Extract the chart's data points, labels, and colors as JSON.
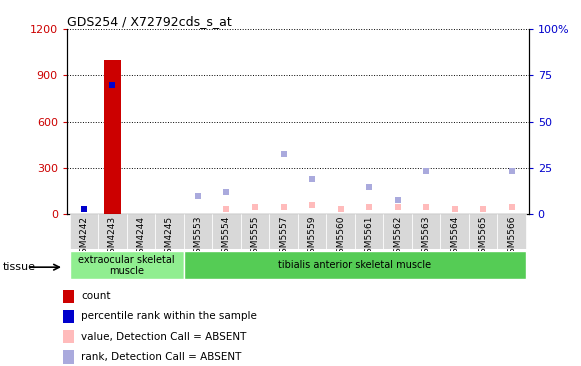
{
  "title": "GDS254 / X72792cds_s_at",
  "samples": [
    "GSM4242",
    "GSM4243",
    "GSM4244",
    "GSM4245",
    "GSM5553",
    "GSM5554",
    "GSM5555",
    "GSM5557",
    "GSM5559",
    "GSM5560",
    "GSM5561",
    "GSM5562",
    "GSM5563",
    "GSM5564",
    "GSM5565",
    "GSM5566"
  ],
  "count_values": [
    0,
    1000,
    0,
    0,
    0,
    0,
    0,
    0,
    0,
    0,
    0,
    0,
    0,
    0,
    0,
    0
  ],
  "percentile_right": [
    3,
    70,
    0,
    0,
    0,
    0,
    0,
    0,
    0,
    0,
    0,
    0,
    0,
    0,
    0,
    0
  ],
  "absent_value_right": [
    0,
    0,
    0,
    0,
    0,
    3,
    4,
    4,
    5,
    3,
    4,
    4,
    4,
    3,
    3,
    4
  ],
  "absent_rank_left": [
    0,
    0,
    0,
    0,
    120,
    145,
    0,
    390,
    230,
    0,
    175,
    90,
    280,
    0,
    0,
    280
  ],
  "ylim_left": [
    0,
    1200
  ],
  "ylim_right": [
    0,
    100
  ],
  "yticks_left": [
    0,
    300,
    600,
    900,
    1200
  ],
  "yticks_right": [
    0,
    25,
    50,
    75,
    100
  ],
  "tissue_groups": [
    {
      "label": "extraocular skeletal\nmuscle",
      "start": 0,
      "end": 4,
      "color": "#90ee90"
    },
    {
      "label": "tibialis anterior skeletal muscle",
      "start": 4,
      "end": 16,
      "color": "#55cc55"
    }
  ],
  "bar_color": "#cc0000",
  "percentile_color": "#0000cc",
  "absent_value_color": "#ffbbbb",
  "absent_rank_color": "#aaaadd",
  "legend": [
    {
      "color": "#cc0000",
      "label": "count"
    },
    {
      "color": "#0000cc",
      "label": "percentile rank within the sample"
    },
    {
      "color": "#ffbbbb",
      "label": "value, Detection Call = ABSENT"
    },
    {
      "color": "#aaaadd",
      "label": "rank, Detection Call = ABSENT"
    }
  ],
  "tissue_label": "tissue",
  "background_color": "#ffffff",
  "tick_label_color_left": "#cc0000",
  "tick_label_color_right": "#0000cc"
}
